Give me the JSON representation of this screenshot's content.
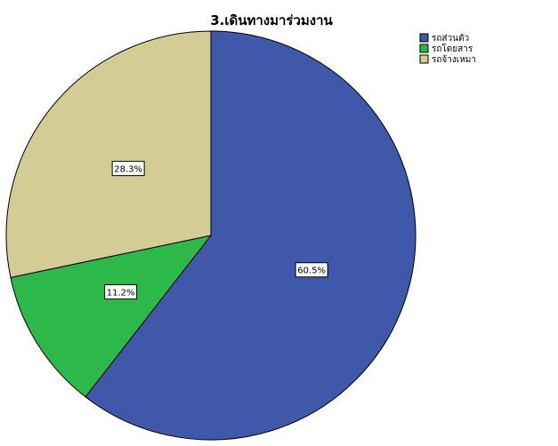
{
  "chart_data": {
    "type": "pie",
    "title": "3.เดินทางมาร่วมงาน",
    "legend_position": "top-right",
    "slices": [
      {
        "label": "รถส่วนตัว",
        "value": 60.5,
        "display": "60.5%",
        "color": "#3f58aa"
      },
      {
        "label": "รถโดยสาร",
        "value": 11.2,
        "display": "11.2%",
        "color": "#2db84a"
      },
      {
        "label": "รถจ้างเหมา",
        "value": 28.3,
        "display": "28.3%",
        "color": "#d3cc95"
      }
    ]
  }
}
